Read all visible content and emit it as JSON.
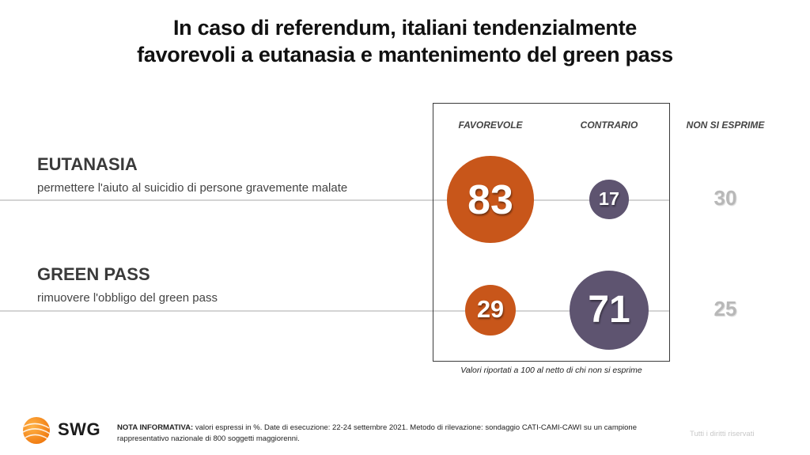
{
  "title": {
    "line1": "In caso di referendum, italiani tendenzialmente",
    "line2": "favorevoli a eutanasia e mantenimento del green pass"
  },
  "columns": {
    "favorevole": "FAVOREVOLE",
    "contrario": "CONTRARIO",
    "non_si_esprime": "NON SI ESPRIME"
  },
  "colors": {
    "favorevole": "#c8561a",
    "contrario": "#5e5470",
    "non_si_esprime": "#b8b8b8"
  },
  "chart_data": {
    "type": "table",
    "title": "In caso di referendum, italiani tendenzialmente favorevoli a eutanasia e mantenimento del green pass",
    "columns": [
      "FAVOREVOLE",
      "CONTRARIO",
      "NON SI ESPRIME"
    ],
    "rows": [
      {
        "name": "EUTANASIA",
        "subtitle": "permettere l'aiuto al suicidio di persone gravemente malate",
        "favorevole": 83,
        "contrario": 17,
        "non_si_esprime": 30
      },
      {
        "name": "GREEN PASS",
        "subtitle": "rimuovere l'obbligo del green pass",
        "favorevole": 29,
        "contrario": 71,
        "non_si_esprime": 25
      }
    ],
    "note": "Valori riportati a 100 al netto di chi non si esprime"
  },
  "footer": {
    "brand": "SWG",
    "nota_label": "NOTA INFORMATIVA:",
    "nota_text": " valori espressi in %. Date di esecuzione: 22-24 settembre 2021. Metodo di rilevazione: sondaggio CATI-CAMI-CAWI su un campione rappresentativo nazionale di 800 soggetti maggiorenni.",
    "rights": "Tutti i diritti riservati"
  }
}
